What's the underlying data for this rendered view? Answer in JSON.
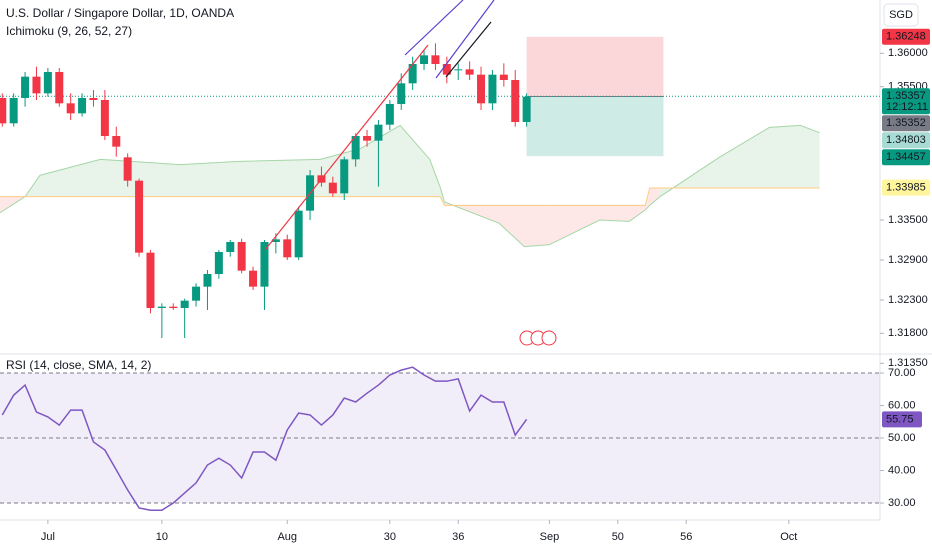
{
  "chart_data": [
    {
      "type": "candlestick",
      "title": "U.S. Dollar / Singapore Dollar, 1D, OANDA",
      "subtitle": "Ichimoku (9, 26, 52, 27)",
      "currency": "SGD",
      "up_color": "#089981",
      "down_color": "#f23645",
      "x": [
        -4,
        -3,
        -2,
        -1,
        0,
        1,
        2,
        3,
        4,
        5,
        6,
        7,
        8,
        9,
        10,
        11,
        12,
        13,
        14,
        15,
        16,
        17,
        18,
        19,
        20,
        21,
        22,
        23,
        24,
        25,
        26,
        27,
        28,
        29,
        30,
        31,
        32,
        33,
        34,
        35,
        36,
        37,
        38,
        39,
        40,
        41,
        42
      ],
      "open": [
        1.3533,
        1.3495,
        1.3533,
        1.3565,
        1.354,
        1.3572,
        1.3525,
        1.351,
        1.3533,
        1.353,
        1.3476,
        1.3444,
        1.3409,
        1.3301,
        1.3218,
        1.322,
        1.3218,
        1.3229,
        1.325,
        1.3269,
        1.3302,
        1.3317,
        1.3274,
        1.325,
        1.3317,
        1.3321,
        1.3294,
        1.3364,
        1.3417,
        1.3406,
        1.339,
        1.3441,
        1.3476,
        1.3469,
        1.3493,
        1.3524,
        1.3555,
        1.3584,
        1.3597,
        1.3584,
        1.3575,
        1.3576,
        1.3568,
        1.3525,
        1.3568,
        1.356,
        1.3497
      ],
      "high": [
        1.354,
        1.354,
        1.3572,
        1.358,
        1.3578,
        1.3578,
        1.354,
        1.354,
        1.3545,
        1.3545,
        1.349,
        1.345,
        1.3412,
        1.3305,
        1.3225,
        1.3225,
        1.3232,
        1.3255,
        1.3275,
        1.3305,
        1.332,
        1.3322,
        1.328,
        1.332,
        1.333,
        1.3328,
        1.337,
        1.3425,
        1.343,
        1.3415,
        1.3445,
        1.348,
        1.3485,
        1.35,
        1.353,
        1.357,
        1.3595,
        1.3605,
        1.3615,
        1.3595,
        1.3585,
        1.3588,
        1.358,
        1.3575,
        1.3585,
        1.3575,
        1.354
      ],
      "low": [
        1.349,
        1.349,
        1.352,
        1.353,
        1.3535,
        1.352,
        1.35,
        1.3505,
        1.352,
        1.347,
        1.3445,
        1.34,
        1.3295,
        1.321,
        1.3173,
        1.3215,
        1.3173,
        1.322,
        1.3215,
        1.3262,
        1.3295,
        1.327,
        1.3245,
        1.3215,
        1.33,
        1.329,
        1.329,
        1.335,
        1.34,
        1.3385,
        1.338,
        1.343,
        1.346,
        1.34,
        1.3485,
        1.3515,
        1.3545,
        1.3575,
        1.3575,
        1.3555,
        1.356,
        1.356,
        1.3515,
        1.3515,
        1.355,
        1.349,
        1.349
      ],
      "close": [
        1.3495,
        1.3533,
        1.3565,
        1.354,
        1.3572,
        1.3525,
        1.351,
        1.3533,
        1.353,
        1.3476,
        1.346,
        1.3409,
        1.3301,
        1.3218,
        1.322,
        1.3218,
        1.3229,
        1.325,
        1.3269,
        1.3302,
        1.3317,
        1.3274,
        1.325,
        1.3317,
        1.3321,
        1.3294,
        1.3364,
        1.3417,
        1.3406,
        1.339,
        1.3441,
        1.3476,
        1.3469,
        1.3493,
        1.3524,
        1.3555,
        1.3584,
        1.3597,
        1.3584,
        1.3568,
        1.3576,
        1.3568,
        1.3525,
        1.3568,
        1.356,
        1.3497,
        1.3535
      ],
      "cloud": {
        "x": [
          -4.2,
          -2,
          -0.7,
          4.6,
          11.6,
          16.8,
          23.9,
          27.4,
          30.9,
          33.5,
          34.4,
          34.8,
          39.6,
          41.8,
          44,
          48.4,
          51,
          52.4,
          52.8,
          53.7,
          58.9,
          63.3,
          66,
          67.7
        ],
        "span_a": [
          1.3361,
          1.3385,
          1.3417,
          1.3441,
          1.3433,
          1.3438,
          1.3441,
          1.3457,
          1.3492,
          1.3441,
          1.34,
          1.3377,
          1.3345,
          1.331,
          1.3313,
          1.335,
          1.3348,
          1.3365,
          1.3372,
          1.3385,
          1.3444,
          1.3489,
          1.3492,
          1.3481
        ],
        "span_b": [
          1.3385,
          1.3385,
          1.3385,
          1.3385,
          1.3385,
          1.3385,
          1.3385,
          1.3385,
          1.3385,
          1.3385,
          1.3385,
          1.3372,
          1.3372,
          1.3372,
          1.3372,
          1.3372,
          1.3372,
          1.3372,
          1.3398,
          1.3398,
          1.3398,
          1.3398,
          1.3398,
          1.3398
        ],
        "span_a_color": "#a5d6a7",
        "span_b_color": "#ffcc80"
      },
      "position": {
        "x": [
          42,
          54
        ],
        "stop": 1.36248,
        "entry": 1.35352,
        "target": 1.34457
      },
      "price_line": {
        "value": 1.35357,
        "color": "#089981"
      },
      "markers": [
        {
          "value": 1.36248,
          "color": "#f23645",
          "text_color": "#ffffff"
        },
        {
          "value": 1.35357,
          "color": "#089981",
          "text_color": "#ffffff",
          "countdown": "12:12:11"
        },
        {
          "value": 1.35352,
          "color": "#787b86",
          "text_color": "#ffffff"
        },
        {
          "value": 1.34803,
          "color": "#a8dbd4",
          "text_color": "#131722"
        },
        {
          "value": 1.34457,
          "color": "#089981",
          "text_color": "#ffffff"
        },
        {
          "value": 1.33985,
          "color": "#fff59d",
          "text_color": "#131722"
        }
      ],
      "xlim": [
        -4.2,
        73
      ],
      "ylim": [
        1.3152,
        1.368
      ],
      "yticks": [
        {
          "value": 1.36,
          "label": "1.36000"
        },
        {
          "value": 1.355,
          "label": "1.35500"
        },
        {
          "value": 1.335,
          "label": "1.33500"
        },
        {
          "value": 1.329,
          "label": "1.32900"
        },
        {
          "value": 1.323,
          "label": "1.32300"
        },
        {
          "value": 1.318,
          "label": "1.31800"
        },
        {
          "value": 1.3135,
          "label": "1.31350"
        }
      ]
    },
    {
      "type": "line",
      "title": "RSI (14, close, SMA, 14, 2)",
      "x": [
        -4,
        -3,
        -2,
        -1,
        0,
        1,
        2,
        3,
        4,
        5,
        6,
        7,
        8,
        9,
        10,
        11,
        12,
        13,
        14,
        15,
        16,
        17,
        18,
        19,
        20,
        21,
        22,
        23,
        24,
        25,
        26,
        27,
        28,
        29,
        30,
        31,
        32,
        33,
        34,
        35,
        36,
        37,
        38,
        39,
        40,
        41,
        42
      ],
      "series": [
        {
          "name": "RSI",
          "color": "#7e57c2",
          "values": [
            57.1,
            63.2,
            66.3,
            58.0,
            56.5,
            54.0,
            58.6,
            58.6,
            48.8,
            46.3,
            40.2,
            34.0,
            28.5,
            27.8,
            27.8,
            30.0,
            33.1,
            36.2,
            41.7,
            43.8,
            41.7,
            37.7,
            45.7,
            45.7,
            43.2,
            52.5,
            57.7,
            57.1,
            54.0,
            57.1,
            62.3,
            61.1,
            63.8,
            66.3,
            69.4,
            70.9,
            71.8,
            69.4,
            67.5,
            67.5,
            68.2,
            58.3,
            63.2,
            61.1,
            61.1,
            50.9,
            55.75
          ]
        }
      ],
      "band": [
        30,
        70
      ],
      "levels": [
        70,
        50,
        30
      ],
      "xlim": [
        -4.2,
        73
      ],
      "ylim": [
        25.4,
        73.4
      ],
      "yticks": [
        {
          "value": 70,
          "label": "70.00"
        },
        {
          "value": 60,
          "label": "60.00"
        },
        {
          "value": 50,
          "label": "50.00"
        },
        {
          "value": 40,
          "label": "40.00"
        },
        {
          "value": 30,
          "label": "30.00"
        }
      ],
      "xticks": [
        {
          "value": 0,
          "label": "Jul"
        },
        10,
        {
          "value": 21,
          "label": "Aug"
        },
        30,
        36,
        {
          "value": 44,
          "label": "Sep"
        },
        50,
        56,
        {
          "value": 65,
          "label": "Oct"
        }
      ]
    }
  ]
}
